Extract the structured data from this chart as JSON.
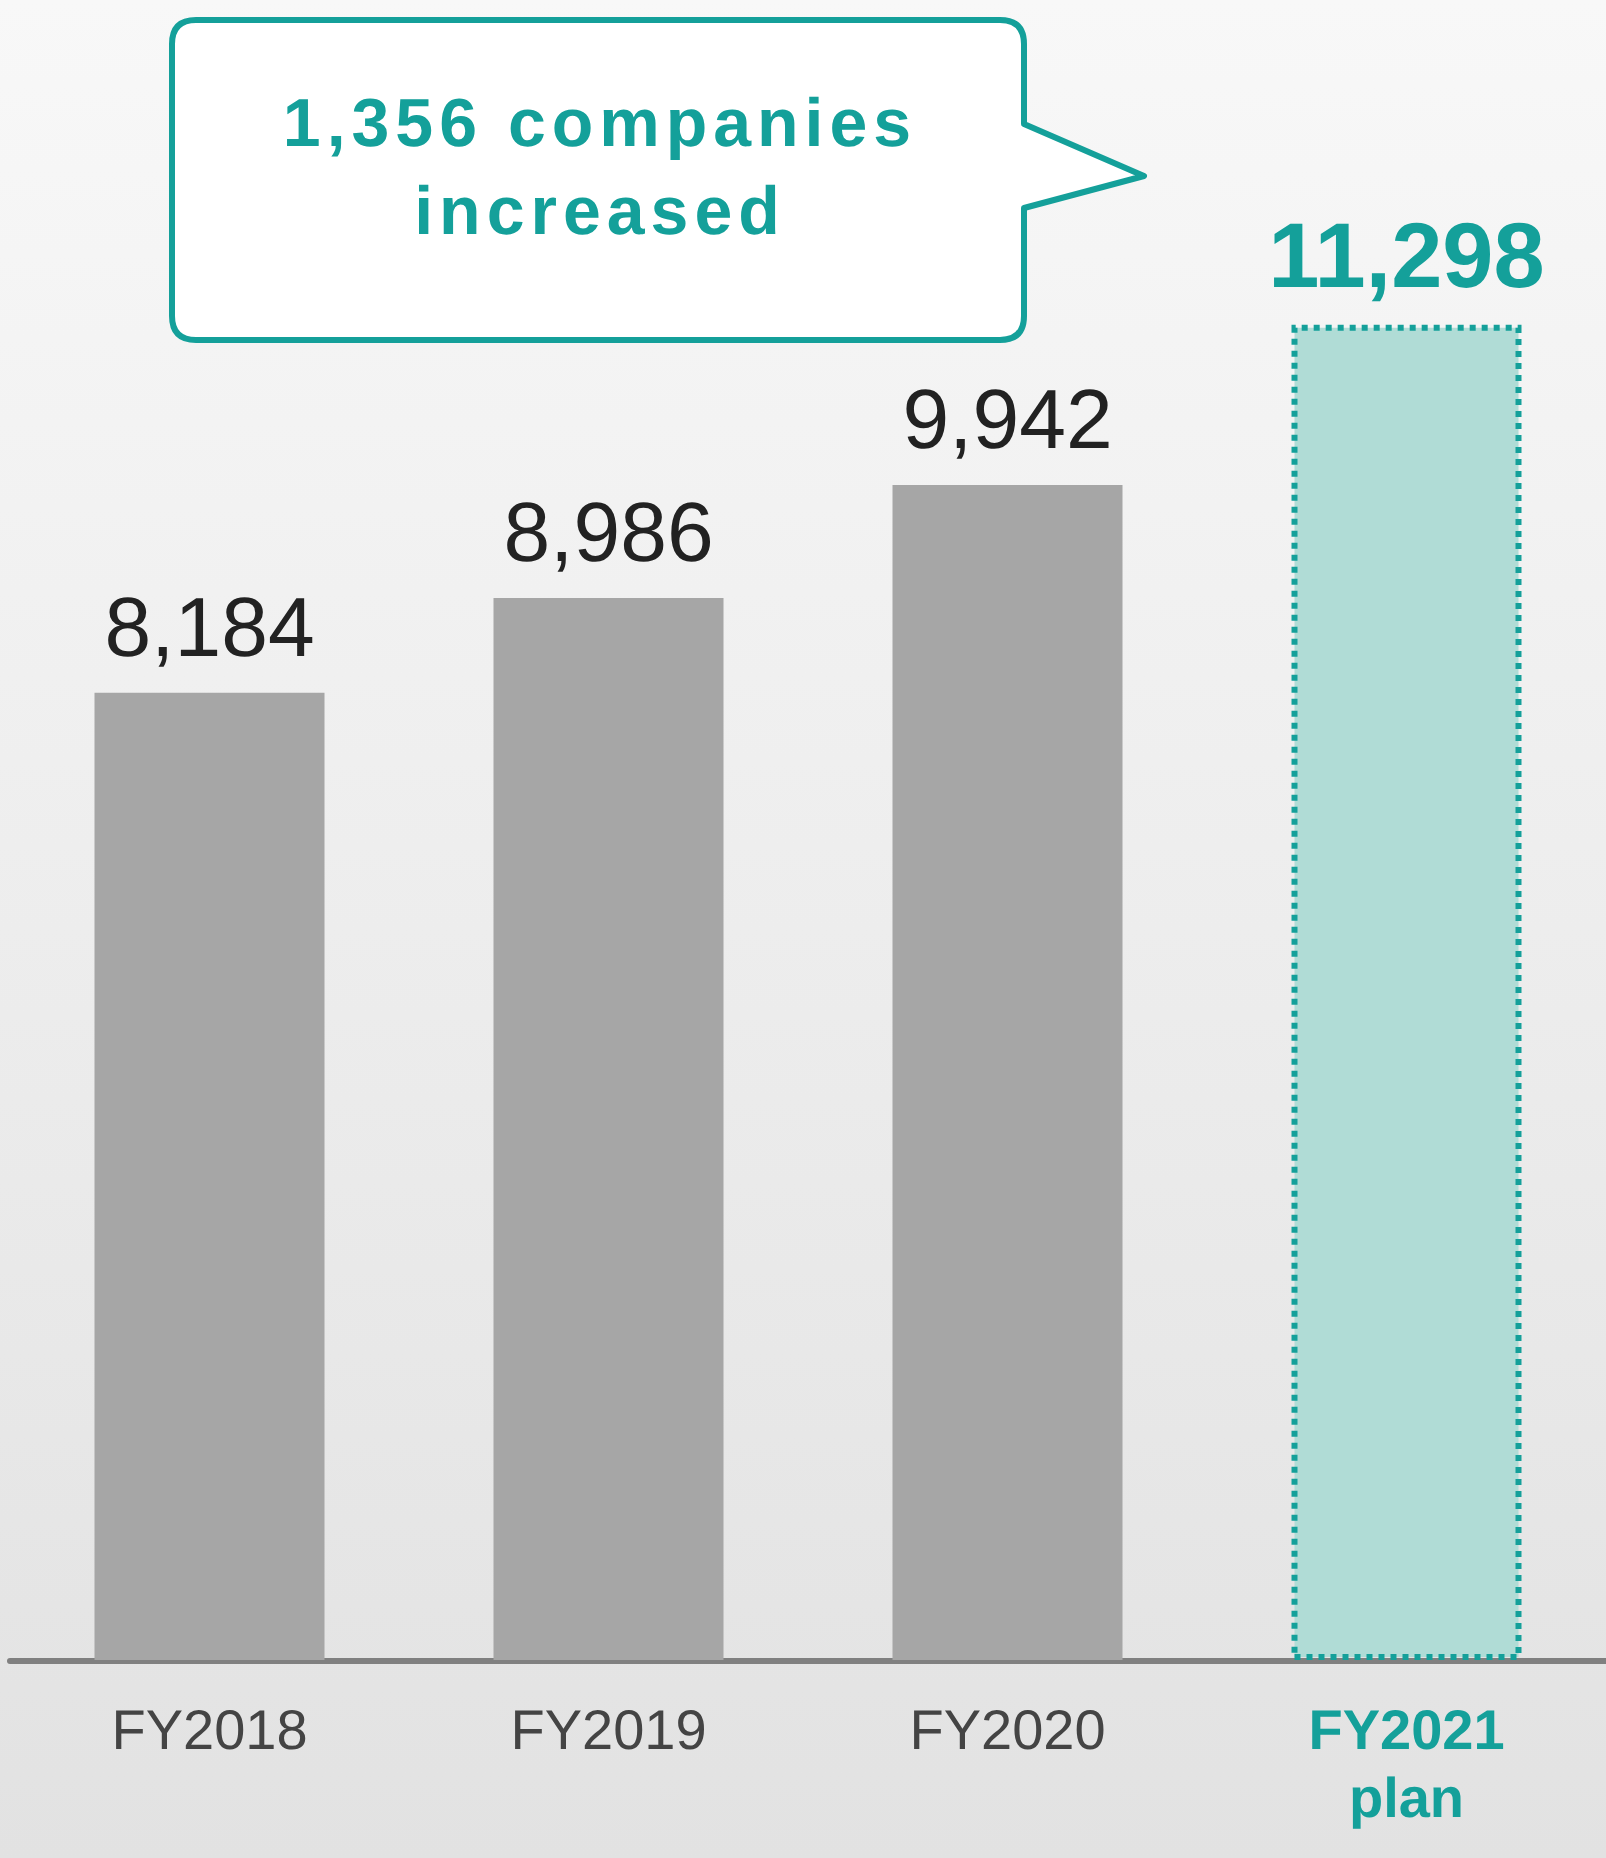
{
  "chart_data": {
    "type": "bar",
    "categories": [
      "FY2018",
      "FY2019",
      "FY2020",
      "FY2021 plan"
    ],
    "values": [
      8184,
      8986,
      9942,
      11298
    ],
    "colors": [
      "#a6a6a6",
      "#a6a6a6",
      "#a6a6a6",
      "#b0dcd6"
    ],
    "value_labels": [
      "8,184",
      "8,986",
      "9,942",
      "11,298"
    ],
    "tick_labels": "x",
    "grid": false,
    "annotations": [
      "1,356 companies increased"
    ]
  }
}
